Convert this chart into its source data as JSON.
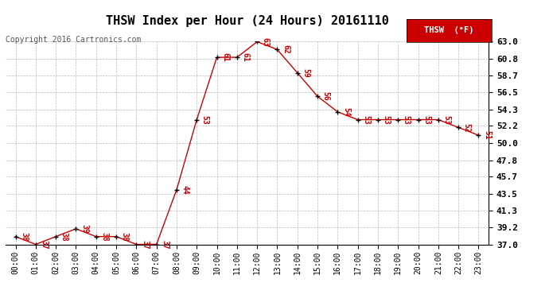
{
  "title": "THSW Index per Hour (24 Hours) 20161110",
  "copyright": "Copyright 2016 Cartronics.com",
  "legend_label": "THSW  (°F)",
  "hours": [
    "00:00",
    "01:00",
    "02:00",
    "03:00",
    "04:00",
    "05:00",
    "06:00",
    "07:00",
    "08:00",
    "09:00",
    "10:00",
    "11:00",
    "12:00",
    "13:00",
    "14:00",
    "15:00",
    "16:00",
    "17:00",
    "18:00",
    "19:00",
    "20:00",
    "21:00",
    "22:00",
    "23:00"
  ],
  "values": [
    38,
    37,
    38,
    39,
    38,
    38,
    37,
    37,
    44,
    53,
    61,
    61,
    63,
    62,
    59,
    56,
    54,
    53,
    53,
    53,
    53,
    53,
    52,
    51
  ],
  "line_color": "#cc0000",
  "marker_color": "#000000",
  "label_color": "#cc0000",
  "legend_bg": "#cc0000",
  "legend_text_color": "#ffffff",
  "background_color": "#ffffff",
  "grid_color": "#bbbbbb",
  "ylim": [
    37.0,
    63.0
  ],
  "yticks": [
    37.0,
    39.2,
    41.3,
    43.5,
    45.7,
    47.8,
    50.0,
    52.2,
    54.3,
    56.5,
    58.7,
    60.8,
    63.0
  ],
  "title_fontsize": 11,
  "label_fontsize": 7,
  "copyright_fontsize": 7,
  "axis_fontsize": 7
}
